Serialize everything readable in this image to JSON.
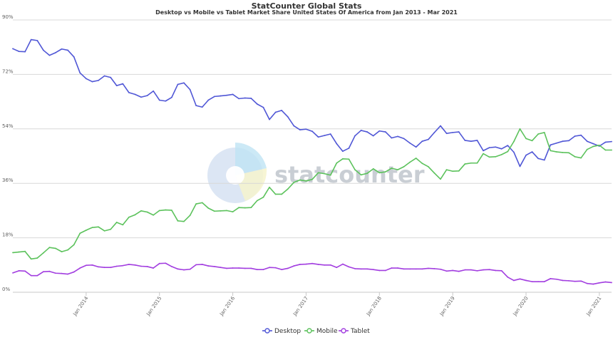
{
  "title": "StatCounter Global Stats",
  "subtitle": "Desktop vs Mobile vs Tablet Market Share United States Of America from Jan 2013 - Mar 2021",
  "watermark": "statcounter",
  "colors": {
    "Desktop": "#5057d6",
    "Mobile": "#5cc25c",
    "Tablet": "#a23ee0",
    "grid": "#d8d8d8"
  },
  "chart_data": {
    "type": "line",
    "x_start": "Jan 2013",
    "x_end": "Mar 2021",
    "x_ticks": [
      "Jan 2014",
      "Jan 2015",
      "Jan 2016",
      "Jan 2017",
      "Jan 2018",
      "Jan 2019",
      "Jan 2020",
      "Jan 2021"
    ],
    "y_ticks": [
      "0%",
      "18%",
      "36%",
      "54%",
      "72%",
      "90%"
    ],
    "ylim": [
      0,
      90
    ],
    "grid": true,
    "legend_position": "bottom-center",
    "series": [
      {
        "name": "Desktop",
        "values": [
          80.5,
          79.6,
          79.5,
          83.5,
          83.2,
          80.0,
          78.3,
          79.2,
          80.4,
          80.0,
          77.8,
          72.5,
          70.6,
          69.6,
          70.0,
          71.5,
          71.0,
          68.3,
          68.9,
          66.0,
          65.4,
          64.5,
          65.0,
          66.5,
          63.5,
          63.2,
          64.4,
          68.7,
          69.2,
          67.0,
          61.7,
          61.2,
          63.5,
          64.7,
          64.9,
          65.1,
          65.4,
          64.0,
          64.2,
          64.1,
          62.2,
          61.1,
          57.1,
          59.5,
          60.1,
          58.0,
          55.0,
          53.7,
          53.9,
          53.2,
          51.3,
          51.8,
          52.3,
          49.1,
          46.6,
          47.6,
          51.7,
          53.5,
          53.0,
          51.7,
          53.3,
          53.0,
          51.0,
          51.5,
          50.8,
          49.3,
          48.0,
          49.9,
          50.5,
          52.8,
          55.0,
          52.5,
          52.8,
          53.0,
          50.2,
          49.9,
          50.2,
          46.8,
          47.8,
          48.0,
          47.4,
          48.5,
          46.3,
          41.6,
          45.3,
          46.4,
          44.2,
          43.7,
          48.7,
          49.3,
          49.9,
          50.1,
          51.6,
          51.9,
          49.9,
          49.1,
          48.3,
          49.6,
          49.8
        ]
      },
      {
        "name": "Mobile",
        "values": [
          13.1,
          13.3,
          13.5,
          11.0,
          11.3,
          13.0,
          14.8,
          14.5,
          13.4,
          14.0,
          15.7,
          19.5,
          20.5,
          21.4,
          21.6,
          20.3,
          20.8,
          23.1,
          22.3,
          24.8,
          25.6,
          26.9,
          26.5,
          25.5,
          27.0,
          27.2,
          27.1,
          23.6,
          23.4,
          25.4,
          29.2,
          29.6,
          27.8,
          26.8,
          26.9,
          27.0,
          26.6,
          28.0,
          27.9,
          28.0,
          30.3,
          31.4,
          34.7,
          32.4,
          32.4,
          34.1,
          36.3,
          37.1,
          36.8,
          37.3,
          39.5,
          39.2,
          38.7,
          42.7,
          44.1,
          44.0,
          40.5,
          38.8,
          39.3,
          40.8,
          39.5,
          39.8,
          41.0,
          40.5,
          41.5,
          43.0,
          44.3,
          42.6,
          41.5,
          39.4,
          37.4,
          40.5,
          40.0,
          40.1,
          42.4,
          42.7,
          42.7,
          45.8,
          44.7,
          44.8,
          45.5,
          46.5,
          49.8,
          54.0,
          50.8,
          50.1,
          52.3,
          52.8,
          46.8,
          46.4,
          46.2,
          46.1,
          44.8,
          44.4,
          47.2,
          48.2,
          48.6,
          47.0,
          47.0
        ]
      },
      {
        "name": "Tablet",
        "values": [
          6.4,
          7.1,
          7.0,
          5.5,
          5.5,
          6.8,
          6.9,
          6.3,
          6.2,
          6.0,
          6.7,
          8.0,
          8.9,
          9.0,
          8.4,
          8.2,
          8.2,
          8.6,
          8.8,
          9.2,
          9.0,
          8.6,
          8.5,
          8.0,
          9.5,
          9.6,
          8.5,
          7.7,
          7.4,
          7.6,
          9.1,
          9.2,
          8.7,
          8.5,
          8.2,
          7.9,
          8.0,
          8.0,
          7.9,
          7.9,
          7.5,
          7.5,
          8.2,
          8.1,
          7.5,
          7.9,
          8.7,
          9.2,
          9.3,
          9.5,
          9.2,
          9.0,
          9.0,
          8.2,
          9.3,
          8.4,
          7.8,
          7.7,
          7.7,
          7.5,
          7.2,
          7.2,
          8.0,
          8.0,
          7.7,
          7.7,
          7.7,
          7.7,
          7.9,
          7.8,
          7.6,
          7.0,
          7.2,
          6.9,
          7.4,
          7.4,
          7.1,
          7.4,
          7.5,
          7.2,
          7.1,
          5.0,
          3.9,
          4.4,
          3.9,
          3.5,
          3.5,
          3.5,
          4.5,
          4.3,
          3.9,
          3.8,
          3.6,
          3.7,
          2.9,
          2.7,
          3.1,
          3.4,
          3.2
        ]
      }
    ]
  }
}
